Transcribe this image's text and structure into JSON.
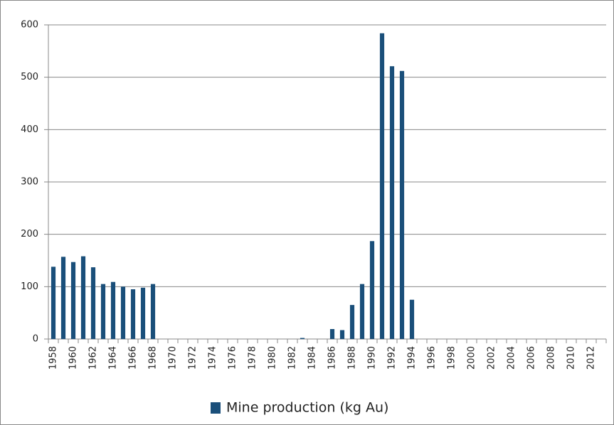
{
  "chart_data": {
    "type": "bar",
    "categories": [
      "1958",
      null,
      "1960",
      null,
      "1962",
      null,
      "1964",
      null,
      "1966",
      null,
      "1968",
      null,
      "1970",
      null,
      "1972",
      null,
      "1974",
      null,
      "1976",
      null,
      "1978",
      null,
      "1980",
      null,
      "1982",
      null,
      "1984",
      null,
      "1986",
      null,
      "1988",
      null,
      "1990",
      null,
      "1992",
      null,
      "1994",
      null,
      "1996",
      null,
      "1998",
      null,
      "2000",
      null,
      "2002",
      null,
      "2004",
      null,
      "2006",
      null,
      "2008",
      null,
      "2010",
      null,
      "2012",
      null
    ],
    "series": [
      {
        "name": "Mine production (kg Au)",
        "color": "#1a4f7a",
        "values": [
          138,
          157,
          147,
          158,
          137,
          105,
          109,
          100,
          95,
          98,
          105,
          0,
          0,
          0,
          0,
          0,
          0,
          0,
          0,
          0,
          0,
          0,
          0,
          0,
          0,
          2,
          0,
          0,
          19,
          17,
          65,
          105,
          187,
          584,
          521,
          512,
          75,
          0,
          0,
          0,
          0,
          0,
          0,
          0,
          0,
          0,
          0,
          0,
          0,
          0,
          0,
          0,
          0,
          0,
          0,
          0
        ]
      }
    ],
    "ylim": [
      0,
      600
    ],
    "yticks": [
      0,
      100,
      200,
      300,
      400,
      500,
      600
    ],
    "grid": true,
    "legend": "bottom"
  }
}
